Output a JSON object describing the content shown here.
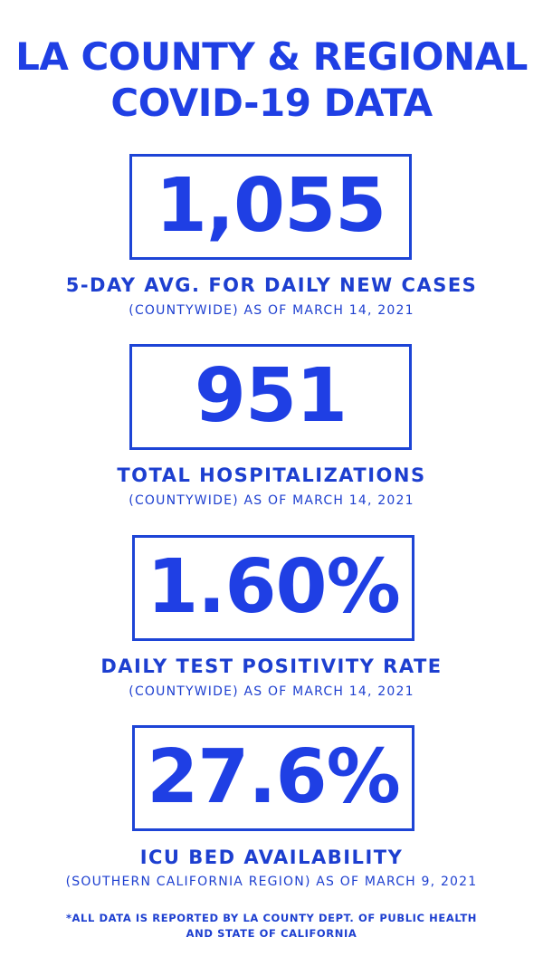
{
  "title_line1": "LA COUNTY & REGIONAL",
  "title_line2": "COVID-19 DATA",
  "stats": [
    {
      "value": "1,055",
      "label": "5-DAY AVG. FOR DAILY NEW CASES",
      "sub": "(COUNTYWIDE) AS OF MARCH 14, 2021"
    },
    {
      "value": "951",
      "label": "TOTAL HOSPITALIZATIONS",
      "sub": "(COUNTYWIDE) AS OF MARCH 14, 2021"
    },
    {
      "value": "1.60%",
      "label": "DAILY TEST POSITIVITY RATE",
      "sub": "(COUNTYWIDE) AS OF MARCH 14, 2021"
    },
    {
      "value": "27.6%",
      "label": "ICU BED AVAILABILITY",
      "sub": "(SOUTHERN CALIFORNIA REGION) AS OF MARCH 9, 2021"
    }
  ],
  "footnote_line1": "*ALL DATA IS REPORTED BY LA COUNTY DEPT. OF PUBLIC HEALTH",
  "footnote_line2": "AND STATE OF CALIFORNIA",
  "colors": {
    "primary": "#1f3fe4",
    "background": "#ffffff"
  }
}
